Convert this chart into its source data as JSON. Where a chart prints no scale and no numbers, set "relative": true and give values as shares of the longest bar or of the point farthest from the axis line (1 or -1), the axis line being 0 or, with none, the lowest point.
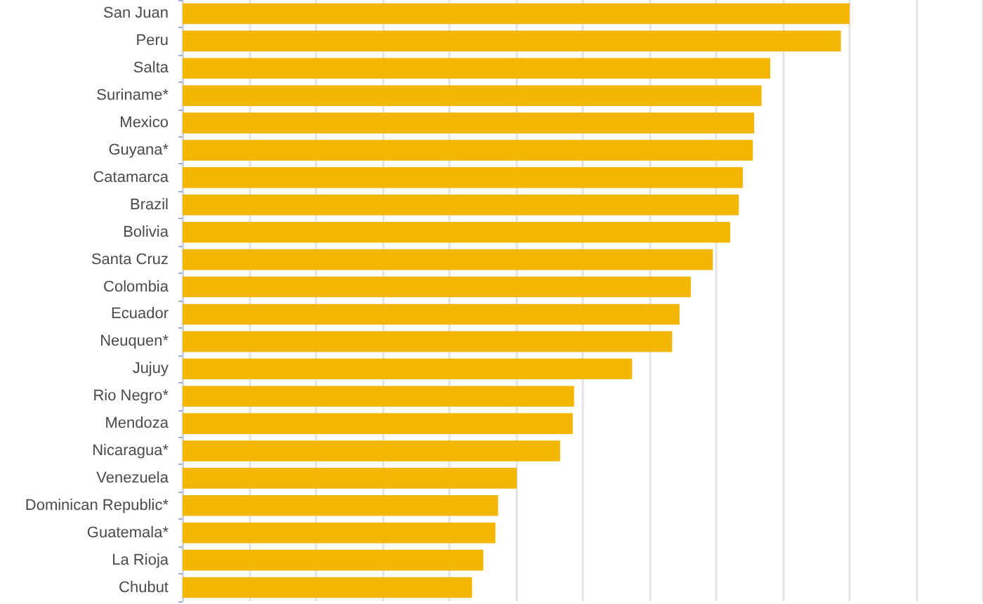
{
  "chart_data": {
    "type": "bar",
    "orientation": "horizontal",
    "relative": true,
    "grid": "x",
    "color": "#f2b705",
    "categories": [
      "San Juan",
      "Peru",
      "Salta",
      "Suriname*",
      "Mexico",
      "Guyana*",
      "Catamarca",
      "Brazil",
      "Bolivia",
      "Santa Cruz",
      "Colombia",
      "Ecuador",
      "Neuquen*",
      "Jujuy",
      "Rio Negro*",
      "Mendoza",
      "Nicaragua*",
      "Venezuela",
      "Dominican Republic*",
      "Guatemala*",
      "La Rioja",
      "Chubut"
    ],
    "values": [
      1,
      0.987,
      0.881,
      0.868,
      0.857,
      0.855,
      0.84,
      0.834,
      0.821,
      0.795,
      0.762,
      0.745,
      0.734,
      0.674,
      0.587,
      0.585,
      0.566,
      0.501,
      0.473,
      0.469,
      0.451,
      0.434
    ]
  }
}
